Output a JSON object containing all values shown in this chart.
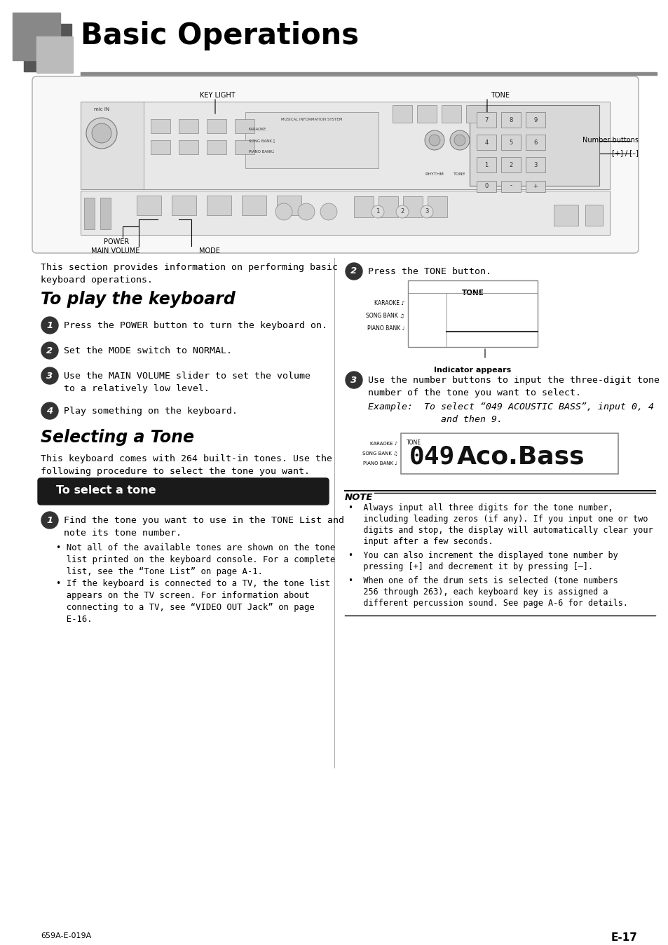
{
  "page_bg": "#ffffff",
  "header_title": "Basic Operations",
  "section1_title": "To play the keyboard",
  "section2_title": "Selecting a Tone",
  "subsection_title": "To select a tone",
  "intro_text1": "This section provides information on performing basic",
  "intro_text2": "keyboard operations.",
  "play_steps": [
    "Press the POWER button to turn the keyboard on.",
    "Set the MODE switch to NORMAL.",
    [
      "Use the MAIN VOLUME slider to set the volume",
      "to a relatively low level."
    ],
    "Play something on the keyboard."
  ],
  "selecting_intro1": "This keyboard comes with 264 built-in tones. Use the",
  "selecting_intro2": "following procedure to select the tone you want.",
  "select_step1": [
    "Find the tone you want to use in the TONE List and",
    "note its tone number.",
    "• Not all of the available tones are shown on the tone",
    "  list printed on the keyboard console. For a complete",
    "  list, see the “Tone List” on page A-1.",
    "• If the keyboard is connected to a TV, the tone list",
    "  appears on the TV screen. For information about",
    "  connecting to a TV, see “VIDEO OUT Jack” on page",
    "  E-16."
  ],
  "right_step2_text": "Press the TONE button.",
  "right_step3_line1": "Use the number buttons to input the three-digit tone",
  "right_step3_line2": "number of the tone you want to select.",
  "right_step3_ex1": "Example:  To select “049 ACOUSTIC BASS”, input 0, 4",
  "right_step3_ex2": "             and then 9.",
  "note_title": "NOTE",
  "note_bullet1_lines": [
    "•  Always input all three digits for the tone number,",
    "   including leading zeros (if any). If you input one or two",
    "   digits and stop, the display will automatically clear your",
    "   input after a few seconds."
  ],
  "note_bullet2_lines": [
    "•  You can also increment the displayed tone number by",
    "   pressing [+] and decrement it by pressing [–]."
  ],
  "note_bullet3_lines": [
    "•  When one of the drum sets is selected (tone numbers",
    "   256 through 263), each keyboard key is assigned a",
    "   different percussion sound. See page A-6 for details."
  ],
  "footer_left": "659A-E-019A",
  "footer_right": "E-17",
  "indicator_text": "Indicator appears",
  "sq1_color": "#888888",
  "sq2_color": "#555555",
  "sq3_color": "#bbbbbb",
  "bar_color": "#888888",
  "divider_color": "#aaaaaa",
  "black_btn_color": "#1a1a1a",
  "circle_color": "#333333",
  "note_text_font": 8.5,
  "body_font": 9.5,
  "step_font": 9.5
}
